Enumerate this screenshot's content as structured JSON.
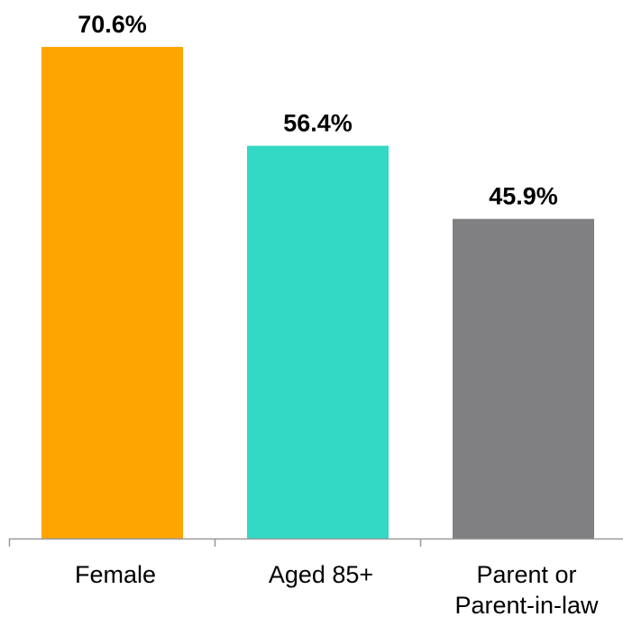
{
  "chart_data": {
    "type": "bar",
    "categories": [
      "Female",
      "Aged 85+",
      "Parent or Parent-in-law"
    ],
    "category_lines": [
      [
        "Female"
      ],
      [
        "Aged 85+"
      ],
      [
        "Parent or",
        "Parent-in-law"
      ]
    ],
    "values": [
      70.6,
      56.4,
      45.9
    ],
    "value_labels": [
      "70.6%",
      "56.4%",
      "45.9%"
    ],
    "colors": [
      "#FFA500",
      "#33D9C4",
      "#808083"
    ],
    "ylim": [
      0,
      75
    ],
    "grid": false,
    "title": "",
    "xlabel": "",
    "ylabel": ""
  }
}
